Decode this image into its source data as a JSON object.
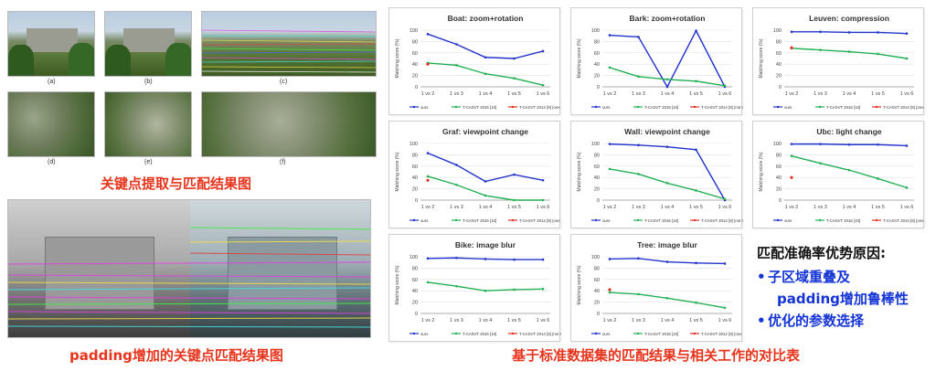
{
  "left": {
    "top_caption": "关键点提取与匹配结果图",
    "bottom_caption": "padding增加的关键点匹配结果图",
    "sublabels": [
      "(a)",
      "(b)",
      "(c)",
      "(d)",
      "(e)",
      "(f)"
    ]
  },
  "right": {
    "bottom_caption": "基于标准数据集的匹配结果与相关工作的对比表"
  },
  "notes": {
    "title": "匹配准确率优势原因:",
    "items": [
      "子区域重叠及",
      "padding增加鲁棒性",
      "优化的参数选择"
    ]
  },
  "colors": {
    "ours": "#2233cc",
    "tcasvt2016": "#22b055",
    "tcasvt2014": "#e03020",
    "caption_red": "#e8341c",
    "note_blue": "#1534d6"
  },
  "chart_data": [
    {
      "type": "line",
      "title": "Boat: zoom+rotation",
      "ylabel": "Matching score (%)",
      "categories": [
        "1 vs 2",
        "1 vs 3",
        "1 vs 4",
        "1 vs 5",
        "1 vs 6"
      ],
      "ylim": [
        0,
        100
      ],
      "yticks": [
        0,
        20,
        40,
        60,
        80,
        100
      ],
      "series": [
        {
          "name": "ours",
          "values": [
            93,
            75,
            52,
            50,
            63
          ]
        },
        {
          "name": "T-CASVT 2016 [10]",
          "values": [
            42,
            38,
            23,
            15,
            3
          ]
        },
        {
          "name": "T-CASVT 2014 [9] (one point)",
          "values": [
            40,
            null,
            null,
            null,
            null
          ]
        }
      ]
    },
    {
      "type": "line",
      "title": "Bark: zoom+rotation",
      "ylabel": "Matching score (%)",
      "categories": [
        "1 vs 2",
        "1 vs 3",
        "1 vs 4",
        "1 vs 5",
        "1 vs 6"
      ],
      "ylim": [
        0,
        100
      ],
      "yticks": [
        0,
        20,
        40,
        60,
        80,
        100
      ],
      "series": [
        {
          "name": "ours",
          "values": [
            91,
            88,
            0,
            99,
            0
          ]
        },
        {
          "name": "T-CASVT 2016 [10]",
          "values": [
            34,
            18,
            13,
            10,
            2
          ]
        },
        {
          "name": "T-CASVT 2014 [9] (not reported)",
          "values": [
            null,
            null,
            null,
            null,
            null
          ]
        }
      ]
    },
    {
      "type": "line",
      "title": "Leuven: compression",
      "ylabel": "Matching score (%)",
      "categories": [
        "1 vs 2",
        "1 vs 3",
        "1 vs 4",
        "1 vs 5",
        "1 vs 6"
      ],
      "ylim": [
        0,
        100
      ],
      "yticks": [
        0,
        20,
        40,
        60,
        80,
        100
      ],
      "series": [
        {
          "name": "ours",
          "values": [
            97,
            97,
            96,
            96,
            94
          ]
        },
        {
          "name": "T-CASVT 2016 [10]",
          "values": [
            68,
            65,
            62,
            58,
            50
          ]
        },
        {
          "name": "T-CASVT 2014 [9] (one point)",
          "values": [
            69,
            null,
            null,
            null,
            null
          ]
        }
      ]
    },
    {
      "type": "line",
      "title": "Graf: viewpoint change",
      "ylabel": "Matching score (%)",
      "categories": [
        "1 vs 2",
        "1 vs 3",
        "1 vs 4",
        "1 vs 5",
        "1 vs 6"
      ],
      "ylim": [
        0,
        100
      ],
      "yticks": [
        0,
        20,
        40,
        60,
        80,
        100
      ],
      "series": [
        {
          "name": "ours",
          "values": [
            83,
            62,
            33,
            45,
            35
          ]
        },
        {
          "name": "T-CASVT 2016 [10]",
          "values": [
            42,
            27,
            8,
            0,
            0
          ]
        },
        {
          "name": "T-CASVT 2014 [9] (one point)",
          "values": [
            35,
            null,
            null,
            null,
            null
          ]
        }
      ]
    },
    {
      "type": "line",
      "title": "Wall: viewpoint change",
      "ylabel": "Matching score (%)",
      "categories": [
        "1 vs 2",
        "1 vs 3",
        "1 vs 4",
        "1 vs 5",
        "1 vs 6"
      ],
      "ylim": [
        0,
        100
      ],
      "yticks": [
        0,
        20,
        40,
        60,
        80,
        100
      ],
      "series": [
        {
          "name": "ours",
          "values": [
            99,
            97,
            94,
            89,
            0
          ]
        },
        {
          "name": "T-CASVT 2016 [10]",
          "values": [
            55,
            46,
            30,
            17,
            2
          ]
        },
        {
          "name": "T-CASVT 2014 [9] (not reported)",
          "values": [
            null,
            null,
            null,
            null,
            null
          ]
        }
      ]
    },
    {
      "type": "line",
      "title": "Ubc: light change",
      "ylabel": "Matching score (%)",
      "categories": [
        "1 vs 2",
        "1 vs 3",
        "1 vs 4",
        "1 vs 5",
        "1 vs 6"
      ],
      "ylim": [
        0,
        100
      ],
      "yticks": [
        0,
        20,
        40,
        60,
        80,
        100
      ],
      "series": [
        {
          "name": "ours",
          "values": [
            99,
            99,
            98,
            98,
            96
          ]
        },
        {
          "name": "T-CASVT 2016 [10]",
          "values": [
            78,
            65,
            53,
            38,
            22
          ]
        },
        {
          "name": "T-CASVT 2014 [9] (one point)",
          "values": [
            40,
            null,
            null,
            null,
            null
          ]
        }
      ]
    },
    {
      "type": "line",
      "title": "Bike: image blur",
      "ylabel": "Matching score (%)",
      "categories": [
        "1 vs 2",
        "1 vs 3",
        "1 vs 4",
        "1 vs 5",
        "1 vs 6"
      ],
      "ylim": [
        0,
        100
      ],
      "yticks": [
        0,
        20,
        40,
        60,
        80,
        100
      ],
      "series": [
        {
          "name": "ours",
          "values": [
            97,
            98,
            96,
            95,
            95
          ]
        },
        {
          "name": "T-CASVT 2016 [10]",
          "values": [
            55,
            48,
            40,
            42,
            43
          ]
        },
        {
          "name": "T-CASVT 2014 [9] (not reported)",
          "values": [
            null,
            null,
            null,
            null,
            null
          ]
        }
      ]
    },
    {
      "type": "line",
      "title": "Tree: image blur",
      "ylabel": "Matching score (%)",
      "categories": [
        "1 vs 2",
        "1 vs 3",
        "1 vs 4",
        "1 vs 5",
        "1 vs 6"
      ],
      "ylim": [
        0,
        100
      ],
      "yticks": [
        0,
        20,
        40,
        60,
        80,
        100
      ],
      "series": [
        {
          "name": "ours",
          "values": [
            96,
            97,
            91,
            89,
            88
          ]
        },
        {
          "name": "T-CASVT 2016 [10]",
          "values": [
            37,
            34,
            27,
            19,
            10
          ]
        },
        {
          "name": "T-CASVT 2014 [9] (one point)",
          "values": [
            42,
            null,
            null,
            null,
            null
          ]
        }
      ]
    }
  ]
}
